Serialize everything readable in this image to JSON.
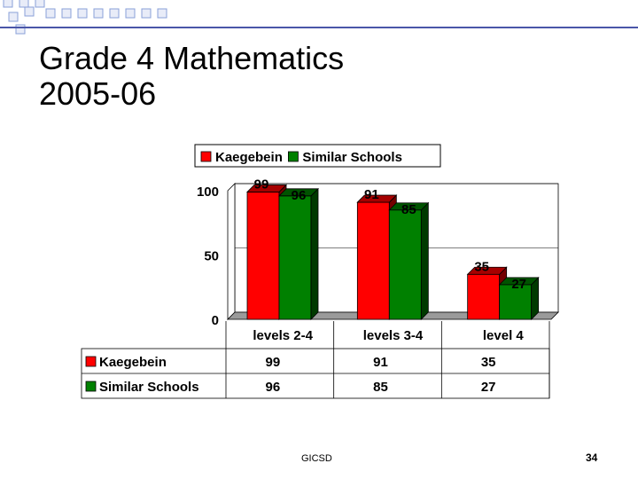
{
  "slide": {
    "title_line1": "Grade 4 Mathematics",
    "title_line2": "2005-06",
    "footer": "GICSD",
    "page_number": "34"
  },
  "colors": {
    "Kaegebein": "#ff0000",
    "Similar Schools": "#008000",
    "rule": "#4a56a8"
  },
  "chart_data": {
    "type": "bar",
    "categories": [
      "levels 2-4",
      "levels 3-4",
      "level 4"
    ],
    "series": [
      {
        "name": "Kaegebein",
        "values": [
          99,
          91,
          35
        ]
      },
      {
        "name": "Similar Schools",
        "values": [
          96,
          85,
          27
        ]
      }
    ],
    "y_ticks": [
      "0",
      "50",
      "100"
    ],
    "ylim": [
      0,
      100
    ],
    "legend": "top",
    "data_table": {
      "rows": [
        {
          "label": "Kaegebein",
          "values": [
            "99",
            "91",
            "35"
          ]
        },
        {
          "label": "Similar Schools",
          "values": [
            "96",
            "85",
            "27"
          ]
        }
      ]
    }
  }
}
